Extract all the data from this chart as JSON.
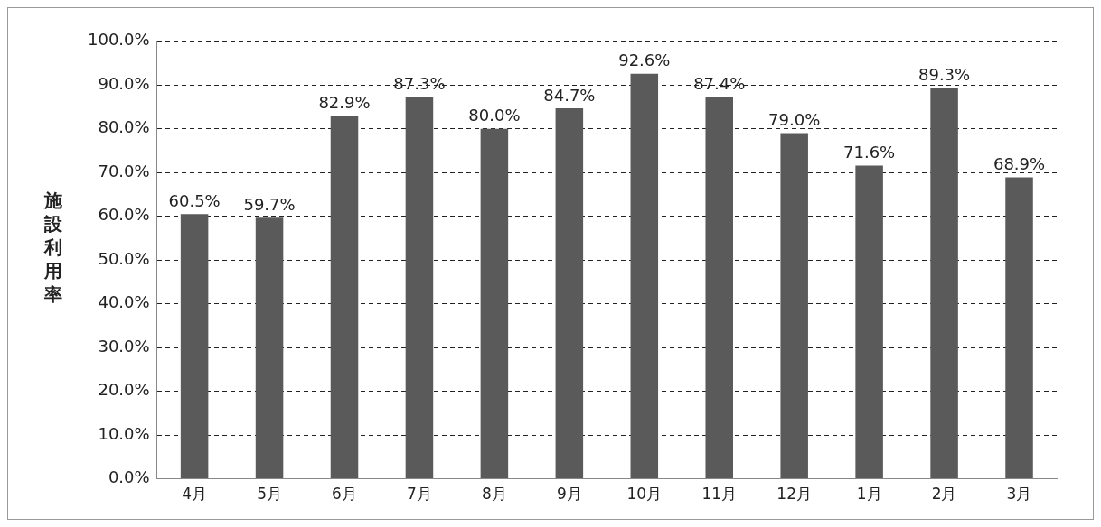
{
  "chart_data": {
    "type": "bar",
    "ylabel": "施設利用率",
    "categories": [
      "4月",
      "5月",
      "6月",
      "7月",
      "8月",
      "9月",
      "10月",
      "11月",
      "12月",
      "1月",
      "2月",
      "3月"
    ],
    "values": [
      60.5,
      59.7,
      82.9,
      87.3,
      80.0,
      84.7,
      92.6,
      87.4,
      79.0,
      71.6,
      89.3,
      68.9
    ],
    "value_labels": [
      "60.5%",
      "59.7%",
      "82.9%",
      "87.3%",
      "80.0%",
      "84.7%",
      "92.6%",
      "87.4%",
      "79.0%",
      "71.6%",
      "89.3%",
      "68.9%"
    ],
    "color": "#5a5a5a",
    "ylim": [
      0,
      100
    ],
    "yticks": [
      {
        "value": 0,
        "label": "0.0%"
      },
      {
        "value": 10,
        "label": "10.0%"
      },
      {
        "value": 20,
        "label": "20.0%"
      },
      {
        "value": 30,
        "label": "30.0%"
      },
      {
        "value": 40,
        "label": "40.0%"
      },
      {
        "value": 50,
        "label": "50.0%"
      },
      {
        "value": 60,
        "label": "60.0%"
      },
      {
        "value": 70,
        "label": "70.0%"
      },
      {
        "value": 80,
        "label": "80.0%"
      },
      {
        "value": 90,
        "label": "90.0%"
      },
      {
        "value": 100,
        "label": "100.0%"
      }
    ],
    "grid": "y",
    "legend": false
  }
}
